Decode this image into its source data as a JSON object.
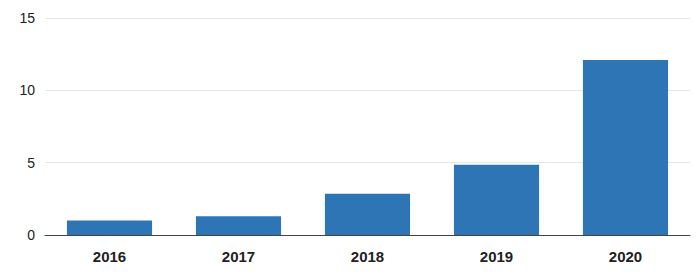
{
  "chart_data": {
    "type": "bar",
    "categories": [
      "2016",
      "2017",
      "2018",
      "2019",
      "2020"
    ],
    "values": [
      1.0,
      1.3,
      2.85,
      4.85,
      12.1
    ],
    "color": "#2e75b6",
    "ylim": [
      0,
      15
    ],
    "yticks": [
      0,
      5,
      10,
      15
    ],
    "grid": true
  }
}
